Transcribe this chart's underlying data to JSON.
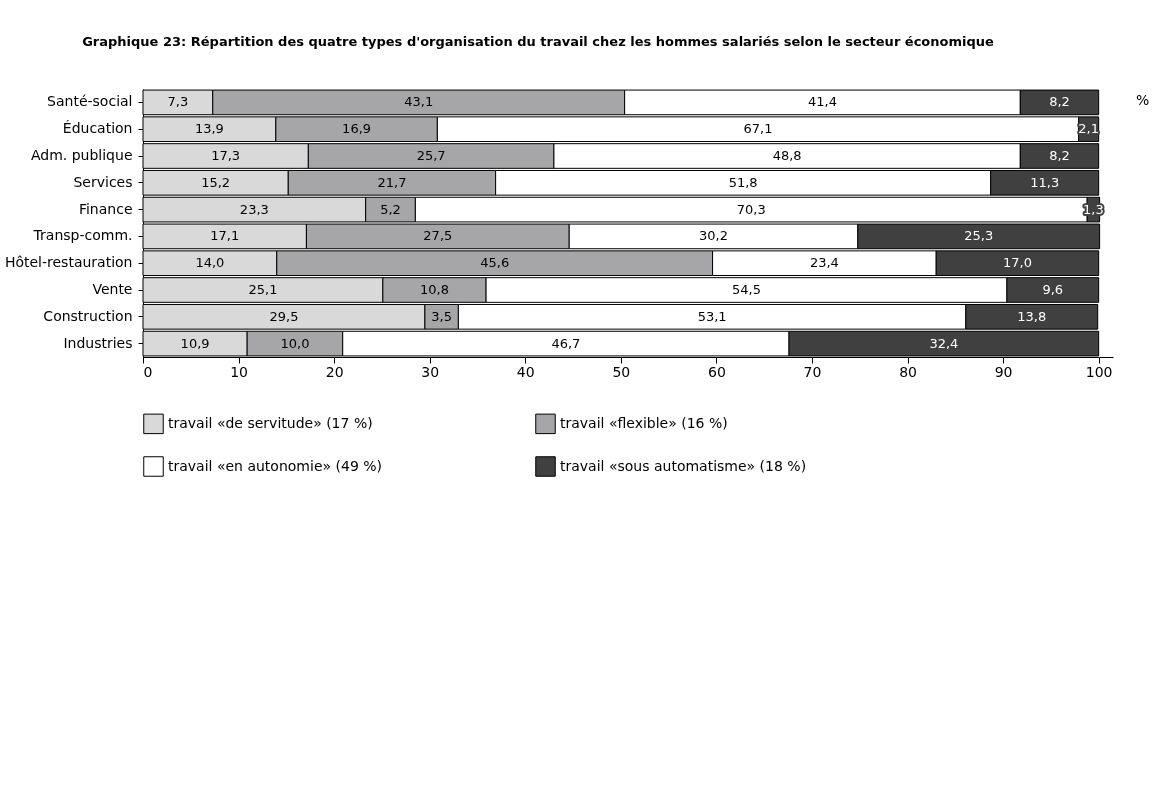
{
  "chart_data": {
    "type": "bar",
    "orientation": "horizontal",
    "stacked": true,
    "title": "Graphique 23: Répartition des quatre types d'organisation du travail chez les hommes salariés selon le secteur économique",
    "annotations": [
      "%"
    ],
    "categories": [
      "Santé-social",
      "Éducation",
      "Adm. publique",
      "Services",
      "Finance",
      "Transp-comm.",
      "Hôtel-restauration",
      "Vente",
      "Construction",
      "Industries"
    ],
    "series": [
      {
        "name": "travail «de servitude» (17 %)",
        "color": "#d9d9d9",
        "values": [
          7.3,
          13.9,
          17.3,
          15.2,
          23.3,
          17.1,
          14.0,
          25.1,
          29.5,
          10.9
        ],
        "value_labels": [
          "7,3",
          "13,9",
          "17,3",
          "15,2",
          "23,3",
          "17,1",
          "14,0",
          "25,1",
          "29,5",
          "10,9"
        ]
      },
      {
        "name": "travail «flexible» (16 %)",
        "color": "#a6a6a8",
        "values": [
          43.1,
          16.9,
          25.7,
          21.7,
          5.2,
          27.5,
          45.6,
          10.8,
          3.5,
          10.0
        ],
        "value_labels": [
          "43,1",
          "16,9",
          "25,7",
          "21,7",
          "5,2",
          "27,5",
          "45,6",
          "10,8",
          "3,5",
          "10,0"
        ]
      },
      {
        "name": "travail «en autonomie» (49 %)",
        "color": "#ffffff",
        "values": [
          41.4,
          67.1,
          48.8,
          51.8,
          70.3,
          30.2,
          23.4,
          54.5,
          53.1,
          46.7
        ],
        "value_labels": [
          "41,4",
          "67,1",
          "48,8",
          "51,8",
          "70,3",
          "30,2",
          "23,4",
          "54,5",
          "53,1",
          "46,7"
        ]
      },
      {
        "name": "travail «sous automatisme» (18 %)",
        "color": "#404040",
        "values": [
          8.2,
          2.1,
          8.2,
          11.3,
          1.3,
          25.3,
          17.0,
          9.6,
          13.8,
          32.4
        ],
        "value_labels": [
          "8,2",
          "2,1",
          "8,2",
          "11,3",
          "1,3",
          "25,3",
          "17,0",
          "9,6",
          "13,8",
          "32,4"
        ]
      }
    ],
    "xlim": [
      0,
      101.5
    ],
    "xticks": [
      0,
      10,
      20,
      30,
      40,
      50,
      60,
      70,
      80,
      90,
      100
    ],
    "grid": false,
    "legend": "bottom"
  }
}
